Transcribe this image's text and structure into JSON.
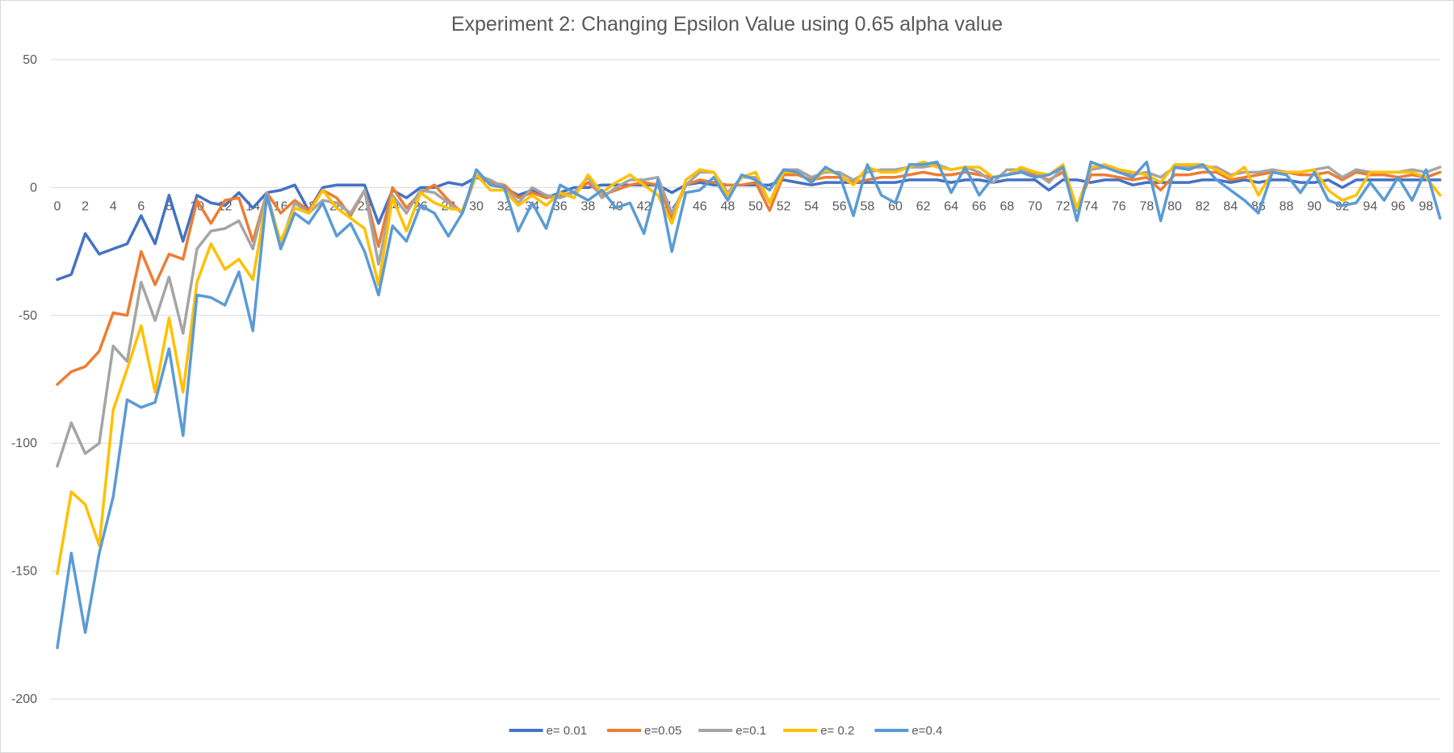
{
  "chart_data": {
    "type": "line",
    "title": "Experiment 2: Changing Epsilon Value using 0.65 alpha value",
    "xlabel": "",
    "ylabel": "",
    "ylim": [
      -200,
      50
    ],
    "yticks": [
      50,
      0,
      -50,
      -100,
      -150,
      -200
    ],
    "x": [
      0,
      1,
      2,
      3,
      4,
      5,
      6,
      7,
      8,
      9,
      10,
      11,
      12,
      13,
      14,
      15,
      16,
      17,
      18,
      19,
      20,
      21,
      22,
      23,
      24,
      25,
      26,
      27,
      28,
      29,
      30,
      31,
      32,
      33,
      34,
      35,
      36,
      37,
      38,
      39,
      40,
      41,
      42,
      43,
      44,
      45,
      46,
      47,
      48,
      49,
      50,
      51,
      52,
      53,
      54,
      55,
      56,
      57,
      58,
      59,
      60,
      61,
      62,
      63,
      64,
      65,
      66,
      67,
      68,
      69,
      70,
      71,
      72,
      73,
      74,
      75,
      76,
      77,
      78,
      79,
      80,
      81,
      82,
      83,
      84,
      85,
      86,
      87,
      88,
      89,
      90,
      91,
      92,
      93,
      94,
      95,
      96,
      97,
      98,
      99
    ],
    "xtick_labels": [
      "0",
      "2",
      "4",
      "6",
      "8",
      "10",
      "12",
      "14",
      "16",
      "18",
      "20",
      "22",
      "24",
      "26",
      "28",
      "30",
      "32",
      "34",
      "36",
      "38",
      "40",
      "42",
      "44",
      "46",
      "48",
      "50",
      "52",
      "54",
      "56",
      "58",
      "60",
      "62",
      "64",
      "66",
      "68",
      "70",
      "72",
      "74",
      "76",
      "78",
      "80",
      "82",
      "84",
      "86",
      "88",
      "90",
      "92",
      "94",
      "96",
      "98"
    ],
    "grid": "horizontal",
    "legend_position": "bottom",
    "series": [
      {
        "name": "e= 0.01",
        "color": "#4472C4",
        "values": [
          -36,
          -34,
          -18,
          -26,
          -24,
          -22,
          -11,
          -22,
          -3,
          -21,
          -3,
          -6,
          -7,
          -2,
          -8,
          -2,
          -1,
          1,
          -9,
          0,
          1,
          1,
          1,
          -14,
          -1,
          -4,
          0,
          0,
          2,
          1,
          4,
          2,
          0,
          -3,
          -1,
          -4,
          -2,
          0,
          0,
          1,
          1,
          1,
          1,
          1,
          -2,
          1,
          2,
          1,
          1,
          1,
          1,
          1,
          3,
          2,
          1,
          2,
          2,
          2,
          2,
          2,
          2,
          3,
          3,
          3,
          2,
          3,
          3,
          2,
          3,
          3,
          3,
          -1,
          3,
          3,
          2,
          3,
          3,
          1,
          2,
          2,
          2,
          2,
          3,
          3,
          2,
          3,
          2,
          3,
          3,
          2,
          2,
          3,
          0,
          3,
          3,
          3,
          3,
          3,
          3,
          3
        ]
      },
      {
        "name": "e=0.05",
        "color": "#ED7D31",
        "values": [
          -77,
          -72,
          -70,
          -64,
          -49,
          -50,
          -25,
          -38,
          -26,
          -28,
          -5,
          -14,
          -5,
          -4,
          -21,
          -2,
          -10,
          -5,
          -9,
          -1,
          -4,
          -11,
          -1,
          -23,
          0,
          -8,
          -2,
          1,
          -5,
          -10,
          5,
          2,
          1,
          -4,
          -2,
          -4,
          -3,
          -2,
          2,
          -3,
          -1,
          1,
          2,
          1,
          -12,
          1,
          3,
          2,
          1,
          1,
          2,
          -9,
          5,
          5,
          3,
          4,
          4,
          2,
          3,
          4,
          4,
          5,
          6,
          5,
          5,
          6,
          5,
          4,
          5,
          6,
          5,
          3,
          6,
          -8,
          5,
          5,
          4,
          3,
          4,
          -1,
          5,
          5,
          6,
          6,
          3,
          4,
          5,
          6,
          6,
          5,
          5,
          6,
          3,
          6,
          5,
          5,
          4,
          5,
          4,
          6
        ]
      },
      {
        "name": "e=0.1",
        "color": "#A5A5A5",
        "values": [
          -109,
          -92,
          -104,
          -100,
          -62,
          -68,
          -37,
          -52,
          -35,
          -57,
          -24,
          -17,
          -16,
          -13,
          -24,
          -2,
          -22,
          -6,
          -10,
          -5,
          -6,
          -10,
          -1,
          -30,
          -3,
          -10,
          -1,
          -2,
          -6,
          -10,
          5,
          3,
          0,
          -6,
          0,
          -3,
          -4,
          -2,
          4,
          -4,
          0,
          3,
          3,
          4,
          -10,
          1,
          6,
          6,
          -2,
          4,
          4,
          -6,
          7,
          7,
          4,
          6,
          6,
          3,
          6,
          7,
          7,
          8,
          8,
          9,
          7,
          8,
          6,
          2,
          7,
          7,
          6,
          2,
          8,
          -9,
          7,
          8,
          6,
          5,
          6,
          4,
          8,
          8,
          8,
          8,
          5,
          6,
          6,
          7,
          6,
          6,
          7,
          8,
          4,
          7,
          6,
          6,
          6,
          7,
          6,
          8
        ]
      },
      {
        "name": "e= 0.2",
        "color": "#FFC000",
        "values": [
          -151,
          -119,
          -124,
          -140,
          -87,
          -71,
          -54,
          -80,
          -51,
          -80,
          -37,
          -22,
          -32,
          -28,
          -36,
          -4,
          -21,
          -8,
          -10,
          -1,
          -8,
          -12,
          -16,
          -38,
          -4,
          -17,
          -2,
          -6,
          -8,
          -9,
          5,
          -1,
          -1,
          -7,
          -3,
          -7,
          -2,
          -4,
          5,
          -2,
          2,
          5,
          1,
          -3,
          -14,
          3,
          7,
          6,
          -3,
          4,
          6,
          -6,
          6,
          6,
          2,
          7,
          5,
          1,
          8,
          6,
          6,
          8,
          10,
          8,
          7,
          8,
          8,
          4,
          5,
          8,
          6,
          5,
          9,
          -8,
          8,
          9,
          7,
          6,
          5,
          2,
          9,
          9,
          9,
          7,
          4,
          8,
          -3,
          6,
          6,
          6,
          7,
          -1,
          -5,
          -3,
          6,
          6,
          6,
          6,
          4,
          -3
        ]
      },
      {
        "name": "e=0.4",
        "color": "#5B9BD5",
        "values": [
          -180,
          -143,
          -174,
          -143,
          -121,
          -83,
          -86,
          -84,
          -63,
          -97,
          -42,
          -43,
          -46,
          -33,
          -56,
          -3,
          -24,
          -10,
          -14,
          -6,
          -19,
          -14,
          -25,
          -42,
          -15,
          -21,
          -7,
          -10,
          -19,
          -10,
          7,
          1,
          0,
          -17,
          -6,
          -16,
          1,
          -2,
          -5,
          -1,
          -8,
          -6,
          -18,
          3,
          -25,
          -2,
          -1,
          4,
          -5,
          5,
          3,
          -1,
          7,
          6,
          2,
          8,
          5,
          -11,
          9,
          -3,
          -6,
          9,
          9,
          10,
          -2,
          8,
          -3,
          4,
          5,
          6,
          4,
          5,
          8,
          -13,
          10,
          8,
          6,
          4,
          10,
          -13,
          8,
          7,
          9,
          3,
          -1,
          -5,
          -10,
          6,
          5,
          -2,
          6,
          -5,
          -7,
          -6,
          2,
          -5,
          4,
          -5,
          7,
          -12
        ]
      }
    ]
  }
}
